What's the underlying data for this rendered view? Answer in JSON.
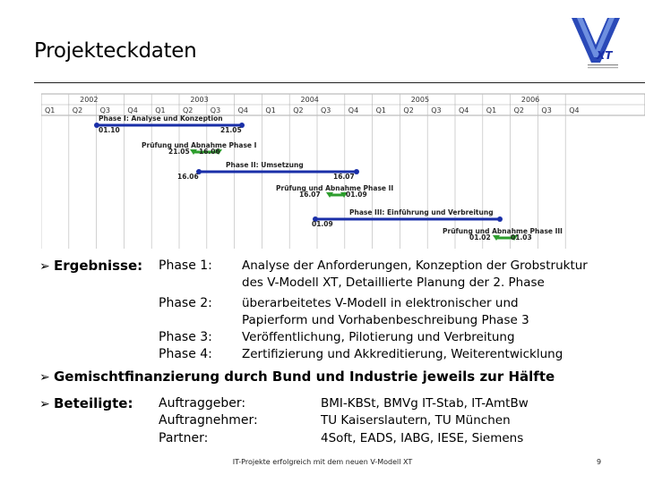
{
  "title": "Projekteckdaten",
  "logo": {
    "letters": "V",
    "sub": "XT"
  },
  "gantt": {
    "years": [
      "2002",
      "2003",
      "2004",
      "2005",
      "2006"
    ],
    "quarters": [
      "Q1",
      "Q2",
      "Q3",
      "Q4",
      "Q1",
      "Q2",
      "Q3",
      "Q4",
      "Q1",
      "Q2",
      "Q3",
      "Q4",
      "Q1",
      "Q2",
      "Q3",
      "Q4",
      "Q1",
      "Q2",
      "Q3",
      "Q4"
    ],
    "phases": [
      {
        "label": "Phase I: Analyse und Konzeption",
        "start": "01.10",
        "end": "21.05"
      },
      {
        "label": "Prüfung und Abnahme Phase I",
        "start": "21.05",
        "end": "16.06"
      },
      {
        "label": "Phase II: Umsetzung",
        "start": "16.06",
        "end": "16.07"
      },
      {
        "label": "Prüfung und Abnahme Phase II",
        "start": "16.07",
        "end": "01.09"
      },
      {
        "label": "Phase III: Einführung und Verbreitung",
        "start": "01.09",
        "end": ""
      },
      {
        "label": "Prüfung und Abnahme Phase III",
        "start": "01.02",
        "end": "01.03"
      }
    ],
    "colors": {
      "bar": "#1a2fa8",
      "milestone": "#2e9e2e",
      "grid": "#bfbfbf"
    }
  },
  "ergebnisse": {
    "label": "Ergebnisse:",
    "phases": [
      {
        "name": "Phase 1:",
        "lines": [
          "Analyse der Anforderungen, Konzeption der Grobstruktur",
          "des V-Modell XT, Detaillierte Planung der 2. Phase"
        ]
      },
      {
        "name": "Phase 2:",
        "lines": [
          "überarbeitetes V-Modell in elektronischer und",
          "Papierform und Vorhabenbeschreibung Phase 3"
        ]
      },
      {
        "name": "Phase 3:",
        "lines": [
          "Veröffentlichung, Pilotierung und Verbreitung"
        ]
      },
      {
        "name": "Phase 4:",
        "lines": [
          "Zertifizierung und Akkreditierung, Weiterentwicklung"
        ]
      }
    ]
  },
  "finanzierung": "Gemischtfinanzierung durch Bund und Industrie jeweils zur Hälfte",
  "beteiligte": {
    "label": "Beteiligte:",
    "rows": [
      {
        "role": "Auftraggeber:",
        "value": "BMI-KBSt, BMVg IT-Stab, IT-AmtBw"
      },
      {
        "role": "Auftragnehmer:",
        "value": "TU Kaiserslautern, TU München"
      },
      {
        "role": "Partner:",
        "value": "4Soft, EADS, IABG, IESE, Siemens"
      }
    ]
  },
  "footer": "IT-Projekte erfolgreich mit dem neuen V-Modell XT",
  "page_number": "9"
}
